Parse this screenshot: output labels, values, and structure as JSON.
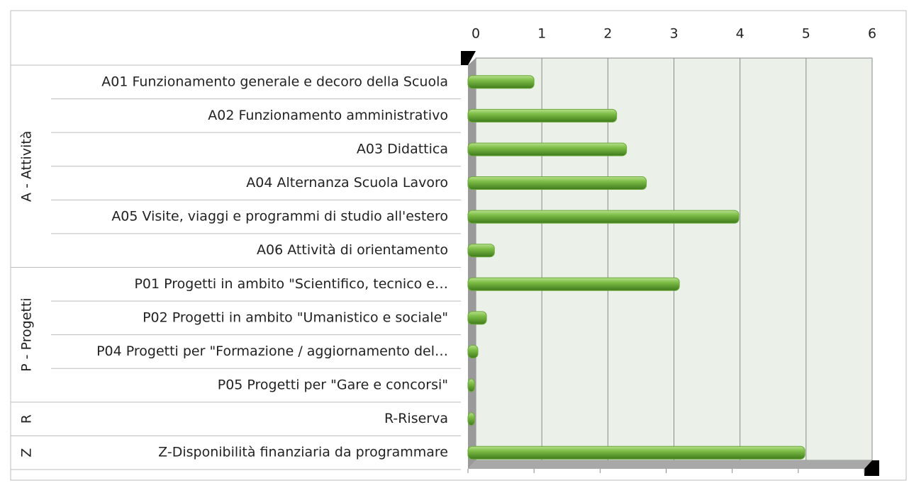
{
  "chart_data": {
    "type": "bar",
    "orientation": "horizontal",
    "color": "#6aaa3a",
    "xlim": [
      0,
      6
    ],
    "xticks": [
      0,
      1,
      2,
      3,
      4,
      5,
      6
    ],
    "grid": true,
    "groups": [
      {
        "name": "A - Attività",
        "categories": [
          "A01 Funzionamento generale e decoro della Scuola",
          "A02 Funzionamento amministrativo",
          "A03 Didattica",
          "A04 Alternanza Scuola Lavoro",
          "A05 Visite, viaggi e programmi di studio all'estero",
          "A06 Attività di orientamento"
        ],
        "values": [
          1.0,
          2.25,
          2.4,
          2.7,
          4.1,
          0.4
        ]
      },
      {
        "name": "P - Progetti",
        "categories": [
          "P01 Progetti in ambito \"Scientifico, tecnico e…",
          "P02 Progetti in ambito \"Umanistico e sociale\"",
          "P04 Progetti per \"Formazione / aggiornamento del…",
          "P05 Progetti per \"Gare e concorsi\""
        ],
        "values": [
          3.2,
          0.28,
          0.15,
          0.1
        ]
      },
      {
        "name": "R",
        "categories": [
          "R-Riserva"
        ],
        "values": [
          0.1
        ]
      },
      {
        "name": "Z",
        "categories": [
          "Z-Disponibilità finanziaria da programmare"
        ],
        "values": [
          5.1
        ]
      }
    ]
  }
}
